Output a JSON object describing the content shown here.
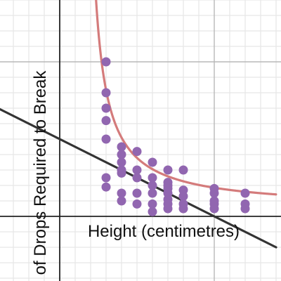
{
  "chart_data": {
    "type": "scatter",
    "title": "",
    "xlabel": "Height (centimetres)",
    "ylabel": "of Drops Required to Break",
    "xlim": [
      -4,
      14
    ],
    "ylim": [
      -4,
      14
    ],
    "grid": true,
    "colors": {
      "points": "#9166b0",
      "curve": "#d47b7b",
      "line": "#333333",
      "grid_minor": "#e6e6e6",
      "grid_major": "#b8b8b8",
      "axis": "#222222"
    },
    "series": [
      {
        "type": "scatter",
        "points": [
          [
            3,
            10
          ],
          [
            3,
            8
          ],
          [
            3,
            7
          ],
          [
            3,
            6.2
          ],
          [
            3,
            5
          ],
          [
            3,
            2.5
          ],
          [
            3,
            1.9
          ],
          [
            4,
            4.5
          ],
          [
            4,
            4
          ],
          [
            4,
            3.5
          ],
          [
            4,
            3
          ],
          [
            4,
            2.8
          ],
          [
            4,
            1.5
          ],
          [
            4,
            1
          ],
          [
            5,
            4.2
          ],
          [
            5,
            3
          ],
          [
            5,
            2.5
          ],
          [
            5,
            1.5
          ],
          [
            5,
            0.8
          ],
          [
            6,
            3.5
          ],
          [
            6,
            2.5
          ],
          [
            6,
            2
          ],
          [
            6,
            1.5
          ],
          [
            6,
            0.8
          ],
          [
            6,
            0.3
          ],
          [
            7,
            3
          ],
          [
            7,
            2.2
          ],
          [
            7,
            2
          ],
          [
            7,
            1.8
          ],
          [
            7,
            1.5
          ],
          [
            7,
            1.1
          ],
          [
            7,
            0.8
          ],
          [
            7,
            0.5
          ],
          [
            8,
            3
          ],
          [
            8,
            1.7
          ],
          [
            8,
            1.3
          ],
          [
            8,
            0.8
          ],
          [
            8,
            0.5
          ],
          [
            10,
            1.8
          ],
          [
            10,
            1.5
          ],
          [
            10,
            1
          ],
          [
            10,
            0.8
          ],
          [
            10,
            0.5
          ],
          [
            12,
            1.5
          ],
          [
            12,
            0.8
          ],
          [
            12,
            0.5
          ]
        ]
      },
      {
        "type": "curve",
        "equation": "y = 11.5/(x - 1.5) + 0.5"
      },
      {
        "type": "line",
        "equation": "y = -0.5x + 5"
      }
    ]
  }
}
